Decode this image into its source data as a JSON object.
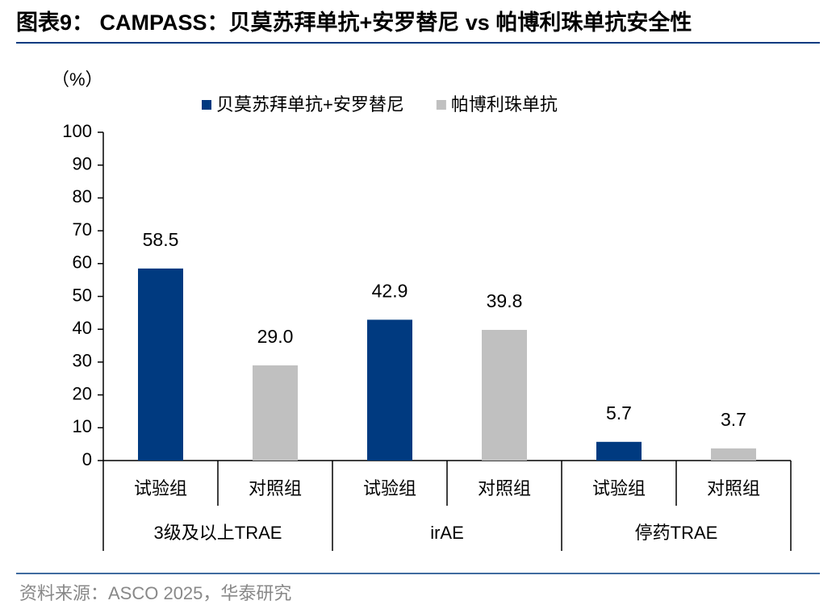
{
  "chart_data": {
    "type": "bar",
    "title": "图表9： CAMPASS：贝莫苏拜单抗+安罗替尼 vs 帕博利珠单抗安全性",
    "y_label": "（%）",
    "source": "资料来源：ASCO 2025，华泰研究",
    "categories": [
      "试验组",
      "对照组",
      "试验组",
      "对照组",
      "试验组",
      "对照组"
    ],
    "group_labels": [
      "3级及以上TRAE",
      "irAE",
      "停药TRAE"
    ],
    "series": [
      {
        "name": "贝莫苏拜单抗+安罗替尼",
        "color": "#003a80",
        "values": [
          58.5,
          null,
          42.9,
          null,
          5.7,
          null
        ],
        "value_labels": [
          "58.5",
          null,
          "42.9",
          null,
          "5.7",
          null
        ]
      },
      {
        "name": "帕博利珠单抗",
        "color": "#c0c0c0",
        "values": [
          null,
          29.0,
          null,
          39.8,
          null,
          3.7
        ],
        "value_labels": [
          null,
          "29.0",
          null,
          "39.8",
          null,
          "3.7"
        ]
      }
    ],
    "ylim": [
      0,
      100
    ],
    "yticks": [
      0,
      10,
      20,
      30,
      40,
      50,
      60,
      70,
      80,
      90,
      100
    ],
    "legend": "top",
    "grid": false
  }
}
